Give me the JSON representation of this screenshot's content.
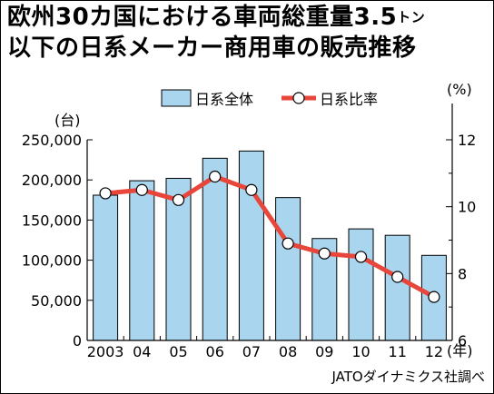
{
  "title": {
    "line1_main": "欧州30カ国における車両総重量3.5",
    "line1_unit": "トン",
    "line2": "以下の日系メーカー商用車の販売推移"
  },
  "source": "JATOダイナミクス社調べ",
  "colors": {
    "bar_fill": "#a9d5ee",
    "line": "#e8463b",
    "marker_fill": "#ffffff"
  },
  "chart_data": {
    "type": "bar",
    "categories": [
      "2003",
      "04",
      "05",
      "06",
      "07",
      "08",
      "09",
      "10",
      "11",
      "12"
    ],
    "series": [
      {
        "name": "日系全体",
        "type": "bar",
        "axis": "left",
        "values": [
          181000,
          199000,
          202000,
          227000,
          236000,
          178000,
          127000,
          139000,
          131000,
          106000
        ]
      },
      {
        "name": "日系比率",
        "type": "line",
        "axis": "right",
        "values": [
          10.4,
          10.5,
          10.2,
          10.9,
          10.5,
          8.9,
          8.6,
          8.5,
          7.9,
          7.3
        ]
      }
    ],
    "y_left": {
      "unit": "(台)",
      "ylim": [
        0,
        250000
      ],
      "ticks": [
        0,
        50000,
        100000,
        150000,
        200000,
        250000
      ],
      "tick_labels": [
        "0",
        "50,000",
        "100,000",
        "150,000",
        "200,000",
        "250,000"
      ]
    },
    "y_right": {
      "unit": "(%)",
      "ylim": [
        6,
        12
      ],
      "ticks": [
        6,
        8,
        10,
        12
      ],
      "tick_labels": [
        "6",
        "8",
        "10",
        "12"
      ]
    },
    "x_unit": "(年)",
    "legend": {
      "placement": "top",
      "entries": [
        "日系全体",
        "日系比率"
      ]
    },
    "grid": false
  }
}
